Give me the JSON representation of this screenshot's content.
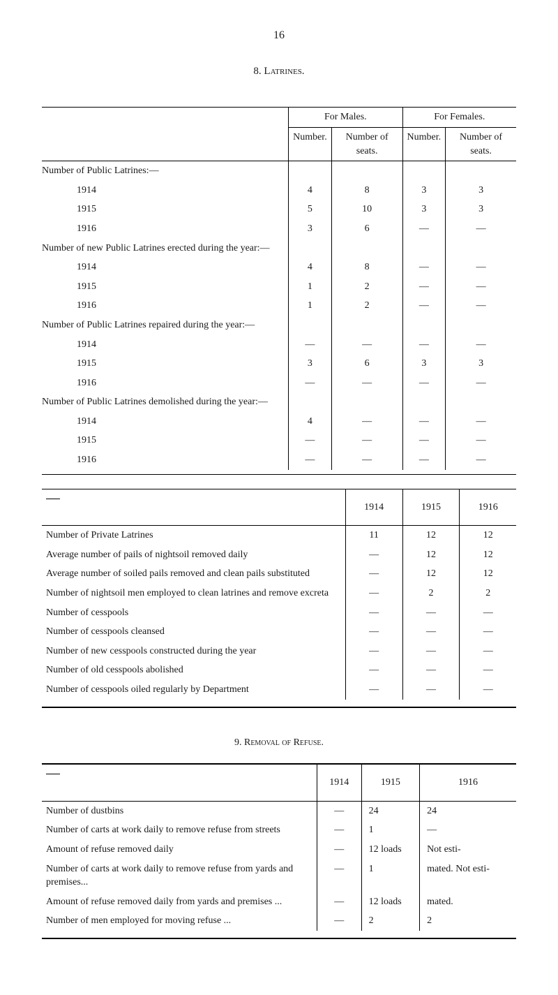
{
  "page_number": "16",
  "section8_title": "8. Latrines.",
  "table1": {
    "col_males": "For Males.",
    "col_females": "For Females.",
    "col_number": "Number.",
    "col_seats": "Number of seats.",
    "heading1": "Number of Public Latrines:—",
    "heading2": "Number of new Public Latrines erected during the year:—",
    "heading3": "Number of Public Latrines repaired during the year:—",
    "heading4": "Number of Public Latrines demolished during the year:—",
    "y1914": "1914",
    "y1915": "1915",
    "y1916": "1916",
    "y1915b": "1915",
    "row1_1914": {
      "m_num": "4",
      "m_seats": "8",
      "f_num": "3",
      "f_seats": "3"
    },
    "row1_1915": {
      "m_num": "5",
      "m_seats": "10",
      "f_num": "3",
      "f_seats": "3"
    },
    "row1_1916": {
      "m_num": "3",
      "m_seats": "6",
      "f_num": "—",
      "f_seats": "—"
    },
    "row2_1914": {
      "m_num": "4",
      "m_seats": "8",
      "f_num": "—",
      "f_seats": "—"
    },
    "row2_1915": {
      "m_num": "1",
      "m_seats": "2",
      "f_num": "—",
      "f_seats": "—"
    },
    "row2_1916": {
      "m_num": "1",
      "m_seats": "2",
      "f_num": "—",
      "f_seats": "—"
    },
    "row3_1914": {
      "m_num": "—",
      "m_seats": "—",
      "f_num": "—",
      "f_seats": "—"
    },
    "row3_1915": {
      "m_num": "3",
      "m_seats": "6",
      "f_num": "3",
      "f_seats": "3"
    },
    "row3_1916": {
      "m_num": "—",
      "m_seats": "—",
      "f_num": "—",
      "f_seats": "—"
    },
    "row4_1914": {
      "m_num": "4",
      "m_seats": "—",
      "f_num": "—",
      "f_seats": "—"
    },
    "row4_1915": {
      "m_num": "—",
      "m_seats": "—",
      "f_num": "—",
      "f_seats": "—"
    },
    "row4_1916": {
      "m_num": "—",
      "m_seats": "—",
      "f_num": "—",
      "f_seats": "—"
    }
  },
  "table2": {
    "h1914": "1914",
    "h1915": "1915",
    "h1916": "1916",
    "rows": [
      {
        "label": "Number of Private Latrines",
        "v14": "11",
        "v15": "12",
        "v16": "12"
      },
      {
        "label": "Average number of pails of nightsoil removed daily",
        "v14": "—",
        "v15": "12",
        "v16": "12"
      },
      {
        "label": "Average number of soiled pails removed and clean pails substituted",
        "v14": "—",
        "v15": "12",
        "v16": "12"
      },
      {
        "label": "Number of nightsoil men employed to clean latrines and remove excreta",
        "v14": "—",
        "v15": "2",
        "v16": "2"
      },
      {
        "label": "Number of cesspools",
        "v14": "—",
        "v15": "—",
        "v16": "—"
      },
      {
        "label": "Number of cesspools cleansed",
        "v14": "—",
        "v15": "—",
        "v16": "—"
      },
      {
        "label": "Number of new cesspools constructed during the year",
        "v14": "—",
        "v15": "—",
        "v16": "—"
      },
      {
        "label": "Number of old cesspools abolished",
        "v14": "—",
        "v15": "—",
        "v16": "—"
      },
      {
        "label": "Number of cesspools oiled regularly by Department",
        "v14": "—",
        "v15": "—",
        "v16": "—"
      }
    ]
  },
  "section9_title": "9. Removal of Refuse.",
  "table3": {
    "h1914": "1914",
    "h1915": "1915",
    "h1916": "1916",
    "rows": [
      {
        "label": "Number of dustbins",
        "v14": "—",
        "v15": "24",
        "v16": "24"
      },
      {
        "label": "Number of carts at work daily to remove refuse from streets",
        "v14": "—",
        "v15": "1",
        "v16": "—"
      },
      {
        "label": "Amount of refuse removed daily",
        "v14": "—",
        "v15": "12 loads",
        "v16": "Not esti-"
      },
      {
        "label": "Number of carts at work daily to remove refuse from yards and premises...",
        "v14": "—",
        "v15": "1",
        "v16": "mated. Not esti-"
      },
      {
        "label": "Amount of refuse removed daily from yards and premises ...",
        "v14": "—",
        "v15": "12 loads",
        "v16": "mated."
      },
      {
        "label": "Number of men employed for moving refuse ...",
        "v14": "—",
        "v15": "2",
        "v16": "2"
      }
    ]
  }
}
